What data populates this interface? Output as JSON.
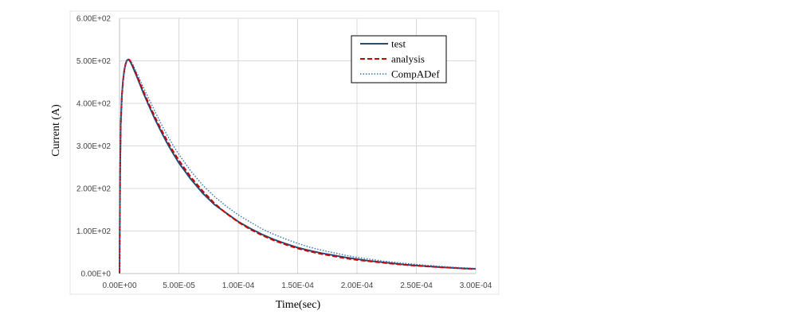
{
  "chart_data": {
    "type": "line",
    "title": "",
    "xlabel": "Time(sec)",
    "ylabel": "Current (A)",
    "xlim": [
      0,
      0.0003
    ],
    "ylim": [
      0,
      600
    ],
    "x_ticks": [
      0,
      5e-05,
      0.0001,
      0.00015,
      0.0002,
      0.00025,
      0.0003
    ],
    "x_tick_labels": [
      "0.00E+00",
      "5.00E-05",
      "1.00E-04",
      "1.50E-04",
      "2.00E-04",
      "2.50E-04",
      "3.00E-04"
    ],
    "y_ticks": [
      0,
      100,
      200,
      300,
      400,
      500,
      600
    ],
    "y_tick_labels": [
      "0.00E+0",
      "1.00E+02",
      "2.00E+02",
      "3.00E+02",
      "4.00E+02",
      "5.00E+02",
      "6.00E+02"
    ],
    "grid": true,
    "legend_position": "top-right",
    "series": [
      {
        "name": "test",
        "color": "#1f4e79",
        "style": "solid",
        "x": [
          0,
          5e-07,
          1e-06,
          2e-06,
          3e-06,
          4e-06,
          5e-06,
          6e-06,
          7e-06,
          8e-06,
          9e-06,
          1e-05,
          1.2e-05,
          1.5e-05,
          2e-05,
          2.5e-05,
          3e-05,
          3.5e-05,
          4e-05,
          4.5e-05,
          5e-05,
          6e-05,
          7e-05,
          8e-05,
          9e-05,
          0.0001,
          0.00011,
          0.00012,
          0.00013,
          0.00014,
          0.00015,
          0.00016,
          0.00017,
          0.00018,
          0.00019,
          0.0002,
          0.00021,
          0.00022,
          0.00023,
          0.00024,
          0.00025,
          0.00026,
          0.00027,
          0.00028,
          0.00029,
          0.0003
        ],
        "y": [
          0,
          240,
          350,
          420,
          455,
          478,
          492,
          500,
          503,
          502,
          498,
          493,
          480,
          460,
          425,
          393,
          362,
          334,
          307,
          283,
          260,
          222,
          189,
          162,
          142,
          122,
          106,
          92,
          80,
          70,
          61,
          54,
          48,
          43,
          38,
          34,
          30,
          27,
          24,
          21,
          19,
          17,
          15,
          13.5,
          12,
          11
        ]
      },
      {
        "name": "analysis",
        "color": "#cc0000",
        "style": "dashed",
        "x": [
          0,
          5e-07,
          1e-06,
          2e-06,
          3e-06,
          4e-06,
          5e-06,
          6e-06,
          7e-06,
          8e-06,
          9e-06,
          1e-05,
          1.2e-05,
          1.5e-05,
          2e-05,
          2.5e-05,
          3e-05,
          3.5e-05,
          4e-05,
          4.5e-05,
          5e-05,
          6e-05,
          7e-05,
          8e-05,
          9e-05,
          0.0001,
          0.00011,
          0.00012,
          0.00013,
          0.00014,
          0.00015,
          0.00016,
          0.00017,
          0.00018,
          0.00019,
          0.0002,
          0.00021,
          0.00022,
          0.00023,
          0.00024,
          0.00025,
          0.00026,
          0.00027,
          0.00028,
          0.00029,
          0.0003
        ],
        "y": [
          0,
          235,
          345,
          418,
          454,
          477,
          491,
          499,
          503,
          503,
          500,
          495,
          483,
          463,
          429,
          397,
          367,
          339,
          313,
          288,
          266,
          227,
          194,
          165,
          141,
          121,
          104,
          90,
          78,
          68,
          59,
          52,
          46,
          41,
          36,
          32,
          29,
          26,
          23,
          20.5,
          18.5,
          16.5,
          15,
          13.5,
          12,
          11
        ]
      },
      {
        "name": "CompADef",
        "color": "#2e75b6",
        "style": "dotted",
        "x": [
          0,
          5e-07,
          1e-06,
          2e-06,
          3e-06,
          4e-06,
          5e-06,
          6e-06,
          7e-06,
          8e-06,
          9e-06,
          1e-05,
          1.2e-05,
          1.5e-05,
          2e-05,
          2.5e-05,
          3e-05,
          3.5e-05,
          4e-05,
          4.5e-05,
          5e-05,
          6e-05,
          7e-05,
          8e-05,
          9e-05,
          0.0001,
          0.00011,
          0.00012,
          0.00013,
          0.00014,
          0.00015,
          0.00016,
          0.00017,
          0.00018,
          0.00019,
          0.0002,
          0.00021,
          0.00022,
          0.00023,
          0.00024,
          0.00025,
          0.00026,
          0.00027,
          0.00028,
          0.00029,
          0.0003
        ],
        "y": [
          0,
          230,
          342,
          416,
          453,
          476,
          490,
          499,
          503,
          504,
          502,
          498,
          487,
          469,
          438,
          409,
          380,
          352,
          326,
          302,
          280,
          241,
          208,
          181,
          158,
          138,
          121,
          105,
          92,
          81,
          71,
          62,
          55,
          49,
          43,
          38,
          34,
          30,
          27,
          24,
          21.5,
          19,
          17,
          15,
          13.5,
          12
        ]
      }
    ]
  }
}
